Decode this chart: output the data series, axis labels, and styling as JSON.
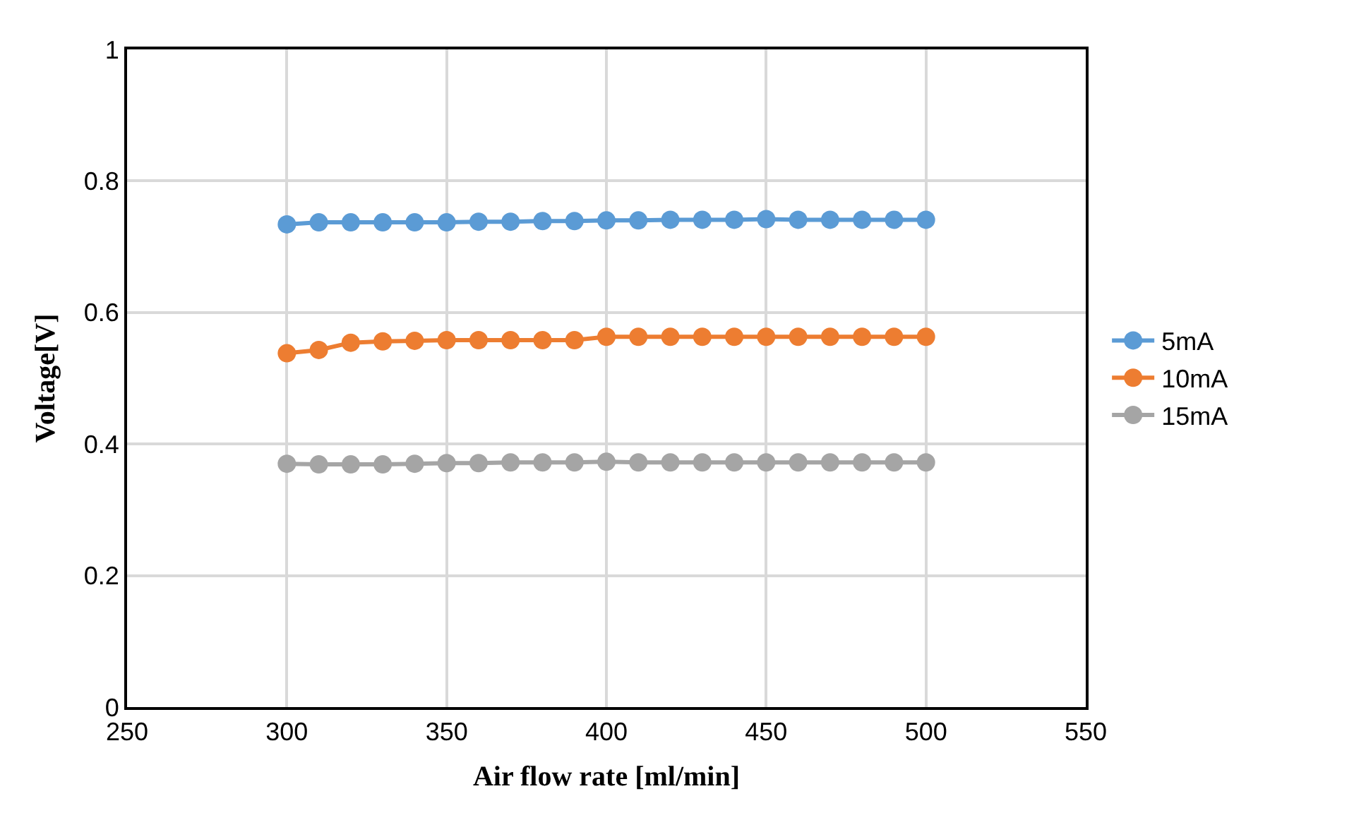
{
  "chart_data": {
    "type": "line",
    "xlabel": "Air flow rate [ml/min]",
    "ylabel": "Voltage[V]",
    "x": [
      300,
      310,
      320,
      330,
      340,
      350,
      360,
      370,
      380,
      390,
      400,
      410,
      420,
      430,
      440,
      450,
      460,
      470,
      480,
      490,
      500
    ],
    "series": [
      {
        "name": "5mA",
        "color": "#5b9bd5",
        "values": [
          0.734,
          0.737,
          0.737,
          0.737,
          0.737,
          0.737,
          0.738,
          0.738,
          0.739,
          0.739,
          0.74,
          0.74,
          0.741,
          0.741,
          0.741,
          0.742,
          0.741,
          0.741,
          0.741,
          0.741,
          0.741
        ]
      },
      {
        "name": "10mA",
        "color": "#ed7d31",
        "values": [
          0.538,
          0.543,
          0.554,
          0.556,
          0.557,
          0.558,
          0.558,
          0.558,
          0.558,
          0.558,
          0.563,
          0.563,
          0.563,
          0.563,
          0.563,
          0.563,
          0.563,
          0.563,
          0.563,
          0.563,
          0.563
        ]
      },
      {
        "name": "15mA",
        "color": "#a5a5a5",
        "values": [
          0.37,
          0.369,
          0.369,
          0.369,
          0.37,
          0.371,
          0.371,
          0.372,
          0.372,
          0.372,
          0.373,
          0.372,
          0.372,
          0.372,
          0.372,
          0.372,
          0.372,
          0.372,
          0.372,
          0.372,
          0.372
        ]
      }
    ],
    "xlim": [
      250,
      550
    ],
    "xticks": [
      250,
      300,
      350,
      400,
      450,
      500,
      550
    ],
    "ylim": [
      0,
      1
    ],
    "yticks": [
      0,
      0.2,
      0.4,
      0.6,
      0.8,
      1
    ],
    "grid": true,
    "legend": "right",
    "marker": "circle",
    "line_style": "solid"
  }
}
